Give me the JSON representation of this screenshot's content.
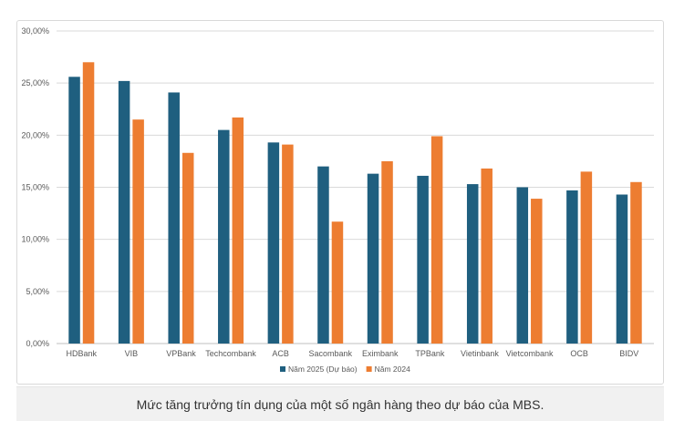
{
  "caption": "Mức tăng trưởng tín dụng của một số ngân hàng theo dự báo của MBS.",
  "chart_data": {
    "type": "bar",
    "title": "",
    "xlabel": "",
    "ylabel": "",
    "ylim": [
      0,
      30
    ],
    "y_ticks": [
      "0,00%",
      "5,00%",
      "10,00%",
      "15,00%",
      "20,00%",
      "25,00%",
      "30,00%"
    ],
    "grid": true,
    "legend_position": "bottom",
    "categories": [
      "HDBank",
      "VIB",
      "VPBank",
      "Techcombank",
      "ACB",
      "Sacombank",
      "Eximbank",
      "TPBank",
      "Vietinbank",
      "Vietcombank",
      "OCB",
      "BIDV"
    ],
    "series": [
      {
        "name": "Năm 2025 (Dự báo)",
        "color": "#1f5f7f",
        "values": [
          25.6,
          25.2,
          24.1,
          20.5,
          19.3,
          17.0,
          16.3,
          16.1,
          15.3,
          15.0,
          14.7,
          14.3
        ]
      },
      {
        "name": "Năm 2024",
        "color": "#ed7d31",
        "values": [
          27.0,
          21.5,
          18.3,
          21.7,
          19.1,
          11.7,
          17.5,
          19.9,
          16.8,
          13.9,
          16.5,
          15.5
        ]
      }
    ]
  }
}
